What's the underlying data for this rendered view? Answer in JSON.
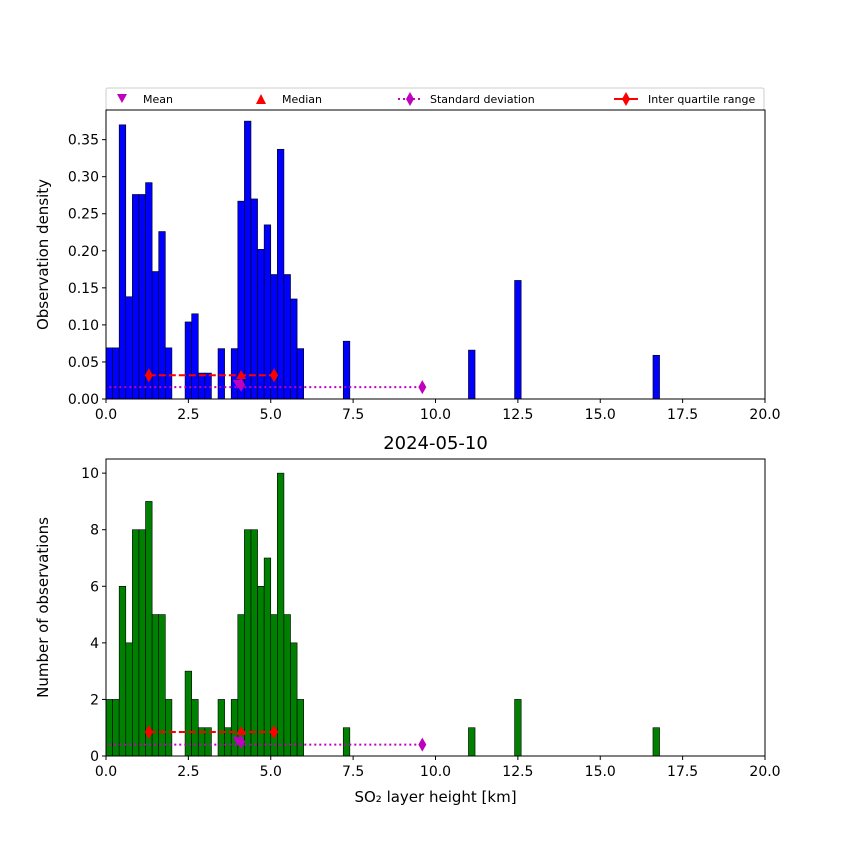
{
  "legend": {
    "placement": "top",
    "entries": [
      {
        "label": "Mean",
        "marker": "triangle-down",
        "color": "#bf00bf"
      },
      {
        "label": "Median",
        "marker": "triangle-up",
        "color": "#ff0000"
      },
      {
        "label": "Standard deviation",
        "marker": "diamond",
        "line": "dotted",
        "color": "#bf00bf"
      },
      {
        "label": "Inter quartile range",
        "marker": "diamond",
        "line": "solid",
        "color": "#ff0000"
      }
    ]
  },
  "chart_data": [
    {
      "type": "bar",
      "title": "",
      "xlabel": "",
      "ylabel": "Observation density",
      "xlim": [
        0,
        20
      ],
      "ylim": [
        0,
        0.39
      ],
      "bar_color": "#0000ff",
      "grid": false,
      "xticks": [
        "0.0",
        "2.5",
        "5.0",
        "7.5",
        "10.0",
        "12.5",
        "15.0",
        "17.5",
        "20.0"
      ],
      "yticks": [
        "0.00",
        "0.05",
        "0.10",
        "0.15",
        "0.20",
        "0.25",
        "0.30",
        "0.35"
      ],
      "bin_width": 0.2,
      "bins": [
        {
          "x": 0.0,
          "y": 0.069
        },
        {
          "x": 0.2,
          "y": 0.069
        },
        {
          "x": 0.4,
          "y": 0.37
        },
        {
          "x": 0.6,
          "y": 0.138
        },
        {
          "x": 0.8,
          "y": 0.276
        },
        {
          "x": 1.0,
          "y": 0.276
        },
        {
          "x": 1.2,
          "y": 0.292
        },
        {
          "x": 1.4,
          "y": 0.172
        },
        {
          "x": 1.6,
          "y": 0.226
        },
        {
          "x": 1.8,
          "y": 0.069
        },
        {
          "x": 2.4,
          "y": 0.104
        },
        {
          "x": 2.6,
          "y": 0.115
        },
        {
          "x": 2.8,
          "y": 0.035
        },
        {
          "x": 3.0,
          "y": 0.035
        },
        {
          "x": 3.4,
          "y": 0.068
        },
        {
          "x": 3.8,
          "y": 0.068
        },
        {
          "x": 4.0,
          "y": 0.267
        },
        {
          "x": 4.2,
          "y": 0.375
        },
        {
          "x": 4.4,
          "y": 0.27
        },
        {
          "x": 4.6,
          "y": 0.202
        },
        {
          "x": 4.8,
          "y": 0.235
        },
        {
          "x": 5.0,
          "y": 0.168
        },
        {
          "x": 5.2,
          "y": 0.337
        },
        {
          "x": 5.4,
          "y": 0.168
        },
        {
          "x": 5.6,
          "y": 0.135
        },
        {
          "x": 5.8,
          "y": 0.068
        },
        {
          "x": 7.2,
          "y": 0.078
        },
        {
          "x": 11.0,
          "y": 0.066
        },
        {
          "x": 12.4,
          "y": 0.16
        },
        {
          "x": 16.6,
          "y": 0.059
        }
      ],
      "stats": {
        "mean": {
          "x": 4.0,
          "y": 0.019
        },
        "median": {
          "x": 4.1,
          "y": 0.031
        },
        "std": {
          "x1": 0.1,
          "x2": 9.6,
          "y": 0.016
        },
        "iqr": {
          "x1": 1.3,
          "x2": 5.1,
          "y": 0.032
        }
      }
    },
    {
      "type": "bar",
      "title": "2024-05-10",
      "xlabel": "SO₂ layer height [km]",
      "ylabel": "Number of observations",
      "xlim": [
        0,
        20
      ],
      "ylim": [
        0,
        10.5
      ],
      "bar_color": "#008000",
      "grid": false,
      "xticks": [
        "0.0",
        "2.5",
        "5.0",
        "7.5",
        "10.0",
        "12.5",
        "15.0",
        "17.5",
        "20.0"
      ],
      "yticks": [
        "0",
        "2",
        "4",
        "6",
        "8",
        "10"
      ],
      "bin_width": 0.2,
      "bins": [
        {
          "x": 0.0,
          "y": 2
        },
        {
          "x": 0.2,
          "y": 2
        },
        {
          "x": 0.4,
          "y": 6
        },
        {
          "x": 0.6,
          "y": 4
        },
        {
          "x": 0.8,
          "y": 8
        },
        {
          "x": 1.0,
          "y": 8
        },
        {
          "x": 1.2,
          "y": 9
        },
        {
          "x": 1.4,
          "y": 5
        },
        {
          "x": 1.6,
          "y": 5
        },
        {
          "x": 1.8,
          "y": 2
        },
        {
          "x": 2.4,
          "y": 3
        },
        {
          "x": 2.6,
          "y": 2
        },
        {
          "x": 2.8,
          "y": 1
        },
        {
          "x": 3.0,
          "y": 1
        },
        {
          "x": 3.4,
          "y": 2
        },
        {
          "x": 3.6,
          "y": 1
        },
        {
          "x": 3.8,
          "y": 2
        },
        {
          "x": 4.0,
          "y": 5
        },
        {
          "x": 4.2,
          "y": 8
        },
        {
          "x": 4.4,
          "y": 8
        },
        {
          "x": 4.6,
          "y": 6
        },
        {
          "x": 4.8,
          "y": 7
        },
        {
          "x": 5.0,
          "y": 5
        },
        {
          "x": 5.2,
          "y": 10
        },
        {
          "x": 5.4,
          "y": 5
        },
        {
          "x": 5.6,
          "y": 4
        },
        {
          "x": 5.8,
          "y": 2
        },
        {
          "x": 7.2,
          "y": 1
        },
        {
          "x": 11.0,
          "y": 1
        },
        {
          "x": 12.4,
          "y": 2
        },
        {
          "x": 16.6,
          "y": 1
        }
      ],
      "stats": {
        "mean": {
          "x": 4.0,
          "y": 0.5
        },
        "median": {
          "x": 4.1,
          "y": 0.85
        },
        "std": {
          "x1": 0.1,
          "x2": 9.6,
          "y": 0.4
        },
        "iqr": {
          "x1": 1.3,
          "x2": 5.1,
          "y": 0.85
        }
      }
    }
  ]
}
